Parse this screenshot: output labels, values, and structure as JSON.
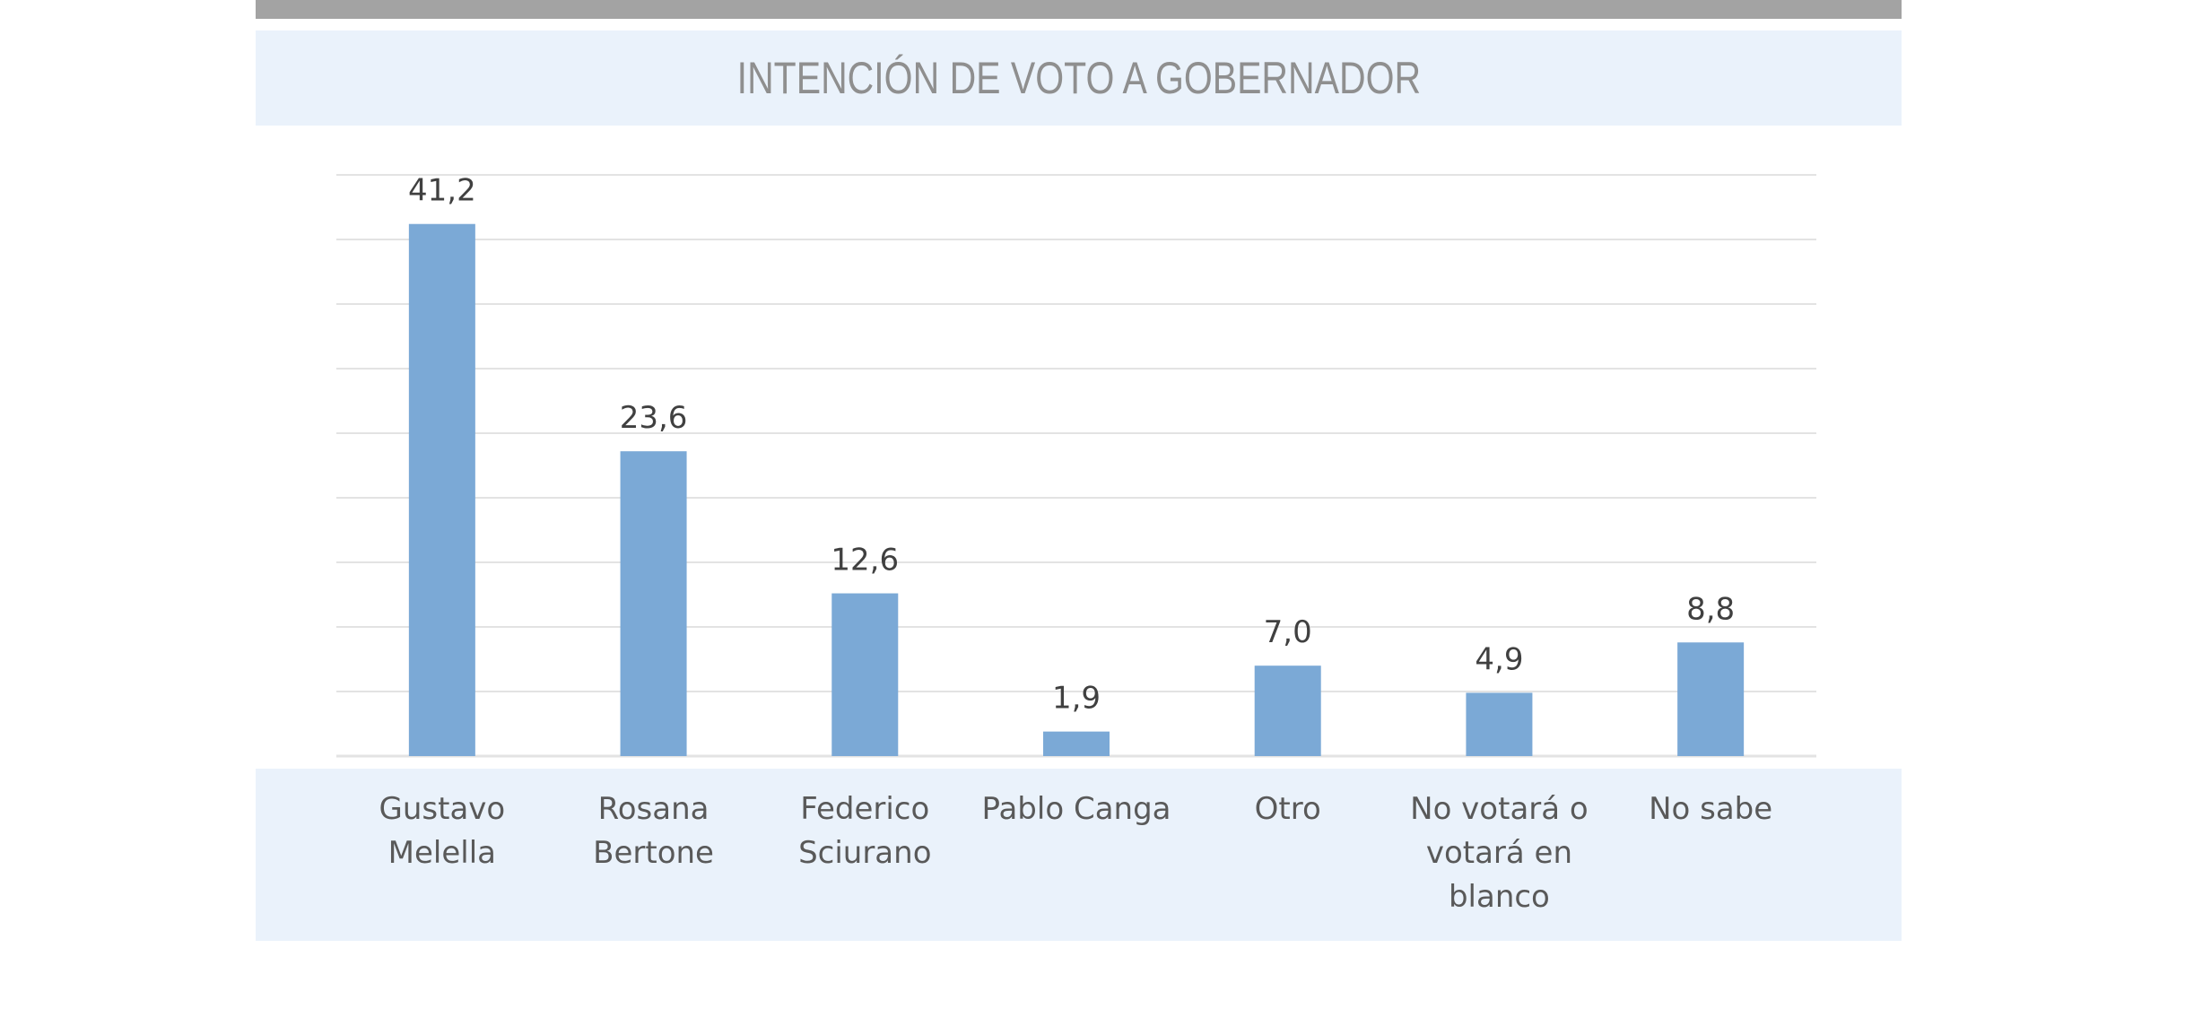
{
  "chart_data": {
    "type": "bar",
    "title": "INTENCIÓN DE VOTO A GOBERNADOR",
    "categories": [
      [
        "Gustavo",
        "Melella"
      ],
      [
        "Rosana",
        "Bertone"
      ],
      [
        "Federico",
        "Sciurano"
      ],
      [
        "Pablo Canga"
      ],
      [
        "Otro"
      ],
      [
        "No votará o",
        "votará en",
        "blanco"
      ],
      [
        "No sabe"
      ]
    ],
    "values": [
      41.2,
      23.6,
      12.6,
      1.9,
      7.0,
      4.9,
      8.8
    ],
    "value_labels": [
      "41,2",
      "23,6",
      "12,6",
      "1,9",
      "7,0",
      "4,9",
      "8,8"
    ],
    "ylim": [
      0,
      45
    ],
    "grid": true,
    "bar_color": "#7ba9d6",
    "grid_color": "#e3e3e3",
    "title_band_color": "#eaf2fb",
    "label_band_color": "#eaf2fb",
    "top_bar_color": "#a3a3a3"
  }
}
